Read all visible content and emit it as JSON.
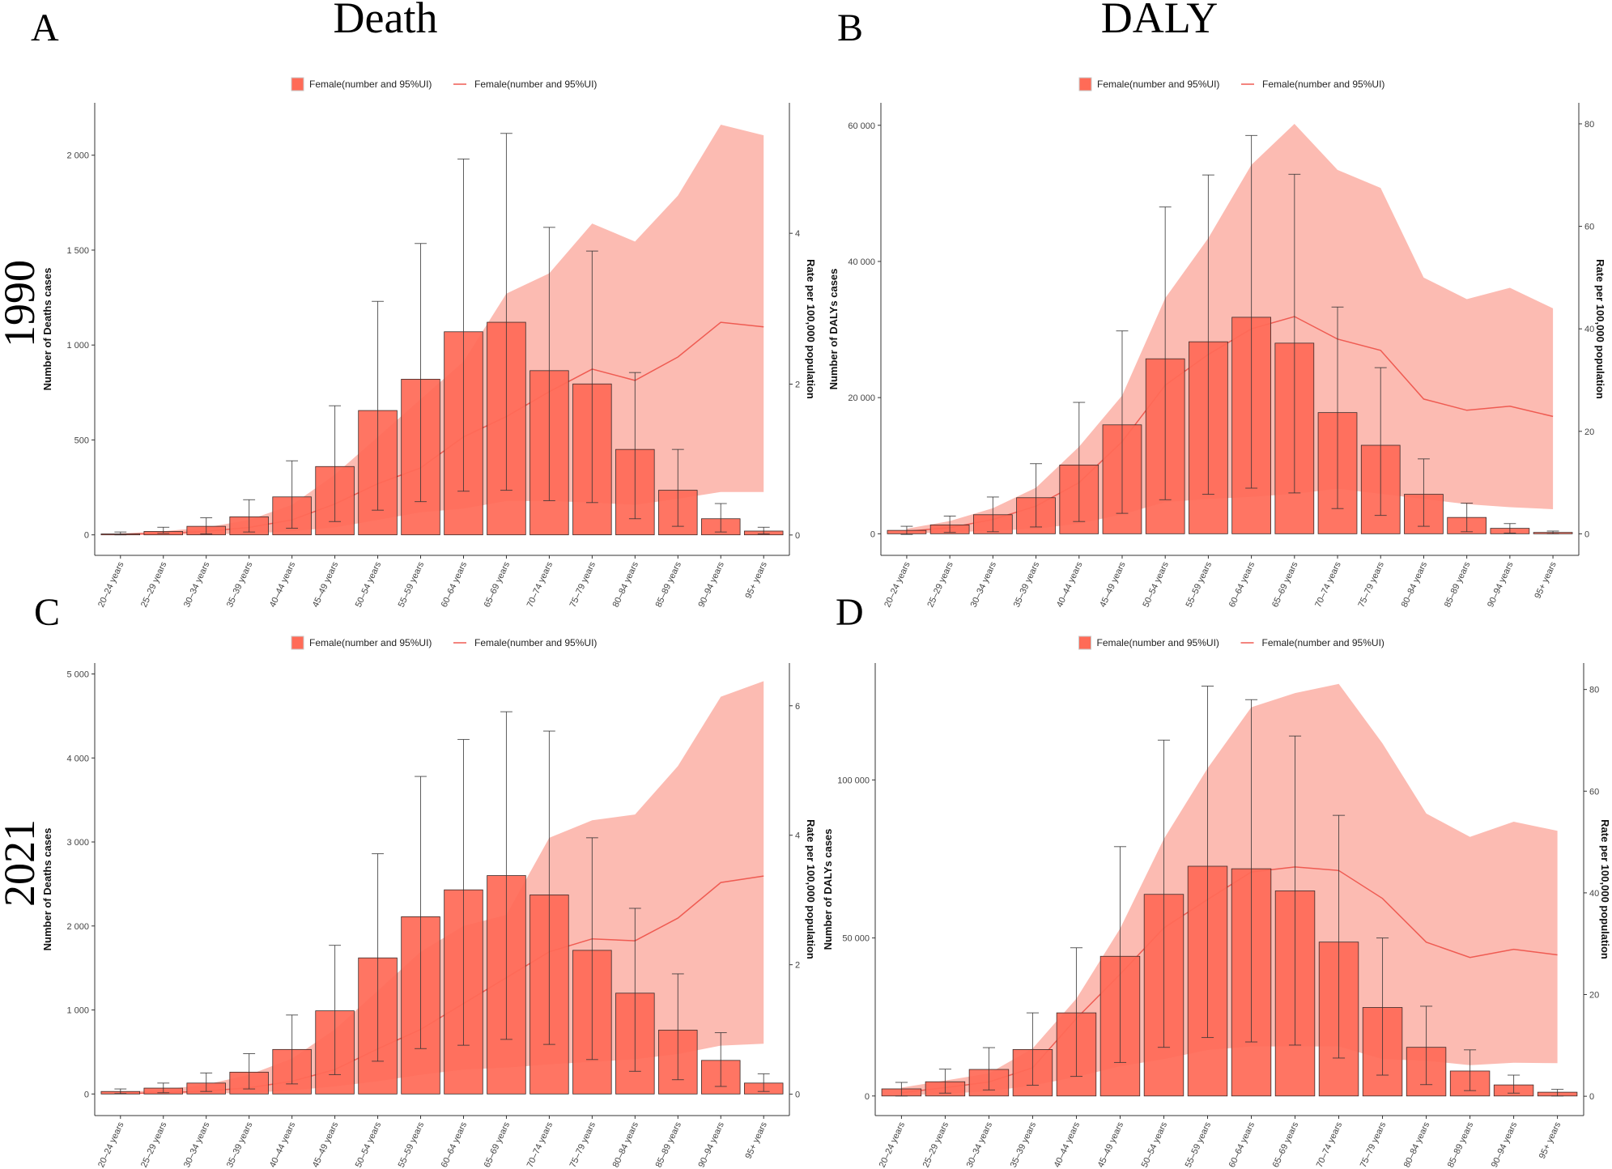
{
  "titles": {
    "death": "Death",
    "daly": "DALY"
  },
  "years": {
    "y1990": "1990",
    "y2021": "2021"
  },
  "panel_letters": [
    "A",
    "B",
    "C",
    "D"
  ],
  "colors": {
    "bar": "#ff6b57",
    "bar_stroke": "#3a2a28",
    "ribbon": "#fcb4aa",
    "line": "#ef5b52",
    "errorbar": "#333333",
    "axis": "#333333"
  },
  "chart_data": [
    {
      "panel": "A",
      "type": "bar",
      "legend": {
        "bar_label": "Female(number and 95%UI)",
        "line_label": "Female(number and 95%UI)",
        "placement": "top"
      },
      "ylabel": "Number of Deaths cases",
      "y2label": "Rate per 100,000 population",
      "categories": [
        "20–24 years",
        "25–29 years",
        "30–34 years",
        "35–39 years",
        "40–44 years",
        "45–49 years",
        "50–54 years",
        "55–59 years",
        "60–64 years",
        "65–69 years",
        "70–74 years",
        "75–79 years",
        "80–84 years",
        "85–89 years",
        "90–94 years",
        "95+ years"
      ],
      "ylim": [
        -108,
        2276
      ],
      "y2lim": [
        -0.27,
        5.73
      ],
      "yticks": [
        0,
        500,
        1000,
        1500,
        2000
      ],
      "ytick_labels": [
        "0",
        "500",
        "1 000",
        "1 500",
        "2 000"
      ],
      "y2ticks": [
        0,
        2,
        4
      ],
      "y2tick_labels": [
        "0",
        "2",
        "4"
      ],
      "values": [
        5,
        18,
        45,
        95,
        200,
        360,
        655,
        820,
        1070,
        1120,
        865,
        795,
        450,
        235,
        85,
        20
      ],
      "lower": [
        0,
        8,
        5,
        15,
        35,
        70,
        130,
        175,
        230,
        235,
        180,
        170,
        85,
        45,
        15,
        5
      ],
      "upper": [
        15,
        40,
        90,
        185,
        390,
        680,
        1230,
        1535,
        1980,
        2115,
        1620,
        1495,
        855,
        450,
        165,
        40
      ],
      "rate": [
        0.01,
        0.02,
        0.05,
        0.1,
        0.2,
        0.41,
        0.68,
        0.89,
        1.3,
        1.57,
        1.9,
        2.2,
        2.05,
        2.36,
        2.82,
        2.76
      ],
      "rate_lower": [
        0,
        0,
        0.01,
        0.02,
        0.05,
        0.1,
        0.2,
        0.3,
        0.35,
        0.45,
        0.45,
        0.43,
        0.4,
        0.48,
        0.57,
        0.57
      ],
      "rate_upper": [
        0.02,
        0.05,
        0.1,
        0.2,
        0.4,
        0.8,
        1.3,
        1.8,
        2.3,
        3.2,
        3.47,
        4.13,
        3.89,
        4.5,
        5.44,
        5.3
      ]
    },
    {
      "panel": "B",
      "type": "bar",
      "legend": {
        "bar_label": "Female(number and 95%UI)",
        "line_label": "Female(number and 95%UI)",
        "placement": "top"
      },
      "ylabel": "Number of DALYs cases",
      "y2label": "Rate per 100,000 population",
      "categories": [
        "20–24 years",
        "25–29 years",
        "30–34 years",
        "35–39 years",
        "40–44 years",
        "45–49 years",
        "50–54 years",
        "55–59 years",
        "60–64 years",
        "65–69 years",
        "70–74 years",
        "75–79 years",
        "80–84 years",
        "85–89 years",
        "90–94 years",
        "95+ years"
      ],
      "ylim": [
        -3170,
        63300
      ],
      "y2lim": [
        -4.2,
        84.1
      ],
      "yticks": [
        0,
        20000,
        40000,
        60000
      ],
      "ytick_labels": [
        "0",
        "20 000",
        "40 000",
        "60 000"
      ],
      "y2ticks": [
        0,
        20,
        40,
        60,
        80
      ],
      "y2tick_labels": [
        "0",
        "20",
        "40",
        "60",
        "80"
      ],
      "values": [
        500,
        1300,
        2800,
        5300,
        10100,
        16000,
        25700,
        28200,
        31800,
        28000,
        17800,
        13000,
        5800,
        2400,
        800,
        200
      ],
      "lower": [
        -100,
        200,
        300,
        1000,
        1800,
        3000,
        5000,
        5800,
        6700,
        6000,
        3700,
        2700,
        1100,
        300,
        100,
        0
      ],
      "upper": [
        1100,
        2600,
        5400,
        10300,
        19300,
        29800,
        48000,
        52700,
        58500,
        52800,
        33300,
        24400,
        11000,
        4500,
        1500,
        400
      ],
      "rate": [
        0.5,
        1.2,
        2.8,
        5.4,
        10,
        18,
        29,
        35,
        40,
        42.4,
        38,
        35.8,
        26.3,
        24.1,
        24.9,
        22.9
      ],
      "rate_lower": [
        0.1,
        0.3,
        0.6,
        1,
        2,
        3.8,
        6.2,
        6.8,
        7.2,
        7.8,
        8.8,
        7.8,
        6.8,
        5.8,
        5.2,
        4.8
      ],
      "rate_upper": [
        1,
        2.5,
        5,
        9,
        17,
        27,
        46,
        57.7,
        72,
        80,
        71,
        67.5,
        50,
        45.8,
        48,
        44
      ]
    },
    {
      "panel": "C",
      "type": "bar",
      "legend": {
        "bar_label": "Female(number and 95%UI)",
        "line_label": "Female(number and 95%UI)",
        "placement": "top"
      },
      "ylabel": "Number of Deaths cases",
      "y2label": "Rate per 100,000 population",
      "categories": [
        "20–24 years",
        "25–29 years",
        "30–34 years",
        "35–39 years",
        "40–44 years",
        "45–49 years",
        "50–54 years",
        "55–59 years",
        "60–64 years",
        "65–69 years",
        "70–74 years",
        "75–79 years",
        "80–84 years",
        "85–89 years",
        "90–94 years",
        "95+ years"
      ],
      "ylim": [
        -257,
        5130
      ],
      "y2lim": [
        -0.33,
        6.66
      ],
      "yticks": [
        0,
        1000,
        2000,
        3000,
        4000,
        5000
      ],
      "ytick_labels": [
        "0",
        "1 000",
        "2 000",
        "3 000",
        "4 000",
        "5 000"
      ],
      "y2ticks": [
        0,
        2,
        4,
        6
      ],
      "y2tick_labels": [
        "0",
        "2",
        "4",
        "6"
      ],
      "values": [
        30,
        70,
        130,
        260,
        530,
        990,
        1620,
        2110,
        2430,
        2600,
        2370,
        1710,
        1200,
        760,
        400,
        130
      ],
      "lower": [
        5,
        15,
        30,
        60,
        120,
        230,
        390,
        540,
        580,
        650,
        590,
        410,
        270,
        170,
        90,
        30
      ],
      "upper": [
        60,
        130,
        250,
        480,
        940,
        1770,
        2860,
        3780,
        4220,
        4550,
        4320,
        3050,
        2210,
        1430,
        730,
        240
      ],
      "rate": [
        0.01,
        0.02,
        0.05,
        0.1,
        0.2,
        0.38,
        0.7,
        1.0,
        1.4,
        1.8,
        2.2,
        2.4,
        2.37,
        2.72,
        3.27,
        3.37
      ],
      "rate_lower": [
        0,
        0.01,
        0.01,
        0.02,
        0.06,
        0.12,
        0.2,
        0.3,
        0.38,
        0.41,
        0.46,
        0.5,
        0.54,
        0.62,
        0.75,
        0.78
      ],
      "rate_upper": [
        0.03,
        0.07,
        0.15,
        0.3,
        0.55,
        1.0,
        1.6,
        2.2,
        2.6,
        2.77,
        3.96,
        4.23,
        4.32,
        5.07,
        6.14,
        6.38
      ]
    },
    {
      "panel": "D",
      "type": "bar",
      "legend": {
        "bar_label": "Female(number and 95%UI)",
        "line_label": "Female(number and 95%UI)",
        "placement": "top"
      },
      "ylabel": "Number of DALYs cases",
      "y2label": "Rate per 100,000 population",
      "categories": [
        "20–24 years",
        "25–29 years",
        "30–34 years",
        "35–39 years",
        "40–44 years",
        "45–49 years",
        "50–54 years",
        "55–59 years",
        "60–64 years",
        "65–69 years",
        "70–74 years",
        "75–79 years",
        "80–84 years",
        "85–89 years",
        "90–94 years",
        "95+ years"
      ],
      "ylim": [
        -6200,
        137000
      ],
      "y2lim": [
        -3.8,
        85.2
      ],
      "yticks": [
        0,
        50000,
        100000
      ],
      "ytick_labels": [
        "0",
        "50 000",
        "100 000"
      ],
      "y2ticks": [
        0,
        20,
        40,
        60,
        80
      ],
      "y2tick_labels": [
        "0",
        "20",
        "40",
        "60",
        "80"
      ],
      "values": [
        2250,
        4500,
        8400,
        14700,
        26300,
        44200,
        63800,
        72700,
        71900,
        64900,
        48700,
        28000,
        15400,
        7900,
        3500,
        1200
      ],
      "lower": [
        0,
        900,
        1900,
        3400,
        6200,
        10600,
        15400,
        18500,
        17100,
        16100,
        12000,
        6600,
        3600,
        1700,
        900,
        0
      ],
      "upper": [
        4300,
        8500,
        15300,
        26300,
        46900,
        78900,
        112600,
        129700,
        125400,
        113900,
        88800,
        50000,
        28400,
        14600,
        6600,
        2100
      ],
      "rate": [
        0.7,
        1.7,
        2.8,
        5.6,
        15.3,
        24,
        33.1,
        38.7,
        44.1,
        45.1,
        44.4,
        38.9,
        30.3,
        27.3,
        28.9,
        27.8
      ],
      "rate_lower": [
        0.2,
        0.5,
        1,
        2.1,
        3.8,
        5.9,
        7.3,
        9.1,
        9.8,
        9.8,
        9.8,
        7.3,
        7,
        6.1,
        6.6,
        6.5
      ],
      "rate_upper": [
        1.7,
        3.1,
        4.5,
        9.4,
        19.2,
        33,
        50.6,
        64.5,
        76.5,
        79.3,
        81.1,
        69.4,
        55.6,
        51,
        54,
        52.2
      ]
    }
  ]
}
